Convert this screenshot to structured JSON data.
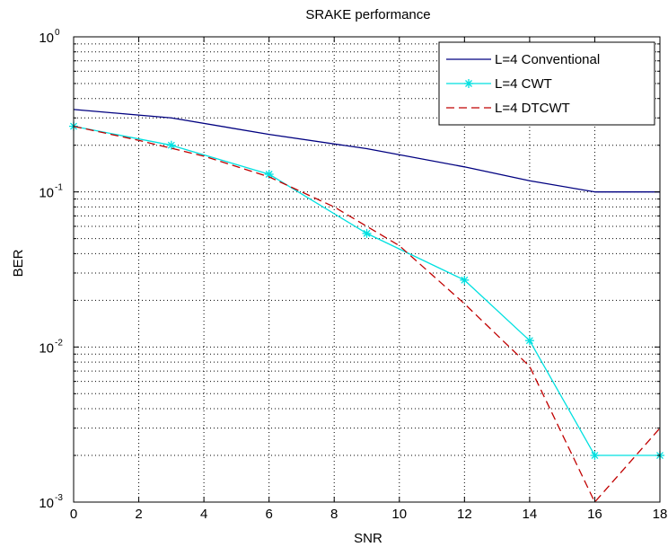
{
  "chart_data": {
    "type": "line",
    "title": "SRAKE performance",
    "xlabel": "SNR",
    "ylabel": "BER",
    "xlim": [
      0,
      18
    ],
    "ylim": [
      0.001,
      1
    ],
    "yscale": "log",
    "grid": true,
    "legend_position": "top-right",
    "x_ticks": [
      "0",
      "2",
      "4",
      "6",
      "8",
      "10",
      "12",
      "14",
      "16",
      "18"
    ],
    "y_ticks": [
      {
        "base": "10",
        "exp": "-3",
        "value": 0.001
      },
      {
        "base": "10",
        "exp": "-2",
        "value": 0.01
      },
      {
        "base": "10",
        "exp": "-1",
        "value": 0.1
      },
      {
        "base": "10",
        "exp": "0",
        "value": 1
      }
    ],
    "series": [
      {
        "name": "L=4 Conventional",
        "color": "#000080",
        "style": "solid",
        "marker": "none",
        "points": [
          [
            0,
            0.34
          ],
          [
            3,
            0.3
          ],
          [
            6,
            0.235
          ],
          [
            9,
            0.19
          ],
          [
            12,
            0.145
          ],
          [
            14,
            0.118
          ],
          [
            16,
            0.1
          ],
          [
            18,
            0.1
          ]
        ]
      },
      {
        "name": "L=4 CWT",
        "color": "#00e0e0",
        "style": "solid",
        "marker": "star",
        "points": [
          [
            0,
            0.265
          ],
          [
            3,
            0.2
          ],
          [
            6,
            0.13
          ],
          [
            9,
            0.054
          ],
          [
            12,
            0.027
          ],
          [
            14,
            0.011
          ],
          [
            16,
            0.002
          ],
          [
            18,
            0.002
          ]
        ]
      },
      {
        "name": "L=4 DTCWT",
        "color": "#c00000",
        "style": "dashed",
        "marker": "none",
        "points": [
          [
            0,
            0.265
          ],
          [
            2,
            0.215
          ],
          [
            4,
            0.17
          ],
          [
            6,
            0.125
          ],
          [
            8,
            0.08
          ],
          [
            10,
            0.045
          ],
          [
            12,
            0.019
          ],
          [
            14,
            0.0075
          ],
          [
            16,
            0.001
          ],
          [
            18,
            0.003
          ]
        ]
      }
    ]
  }
}
